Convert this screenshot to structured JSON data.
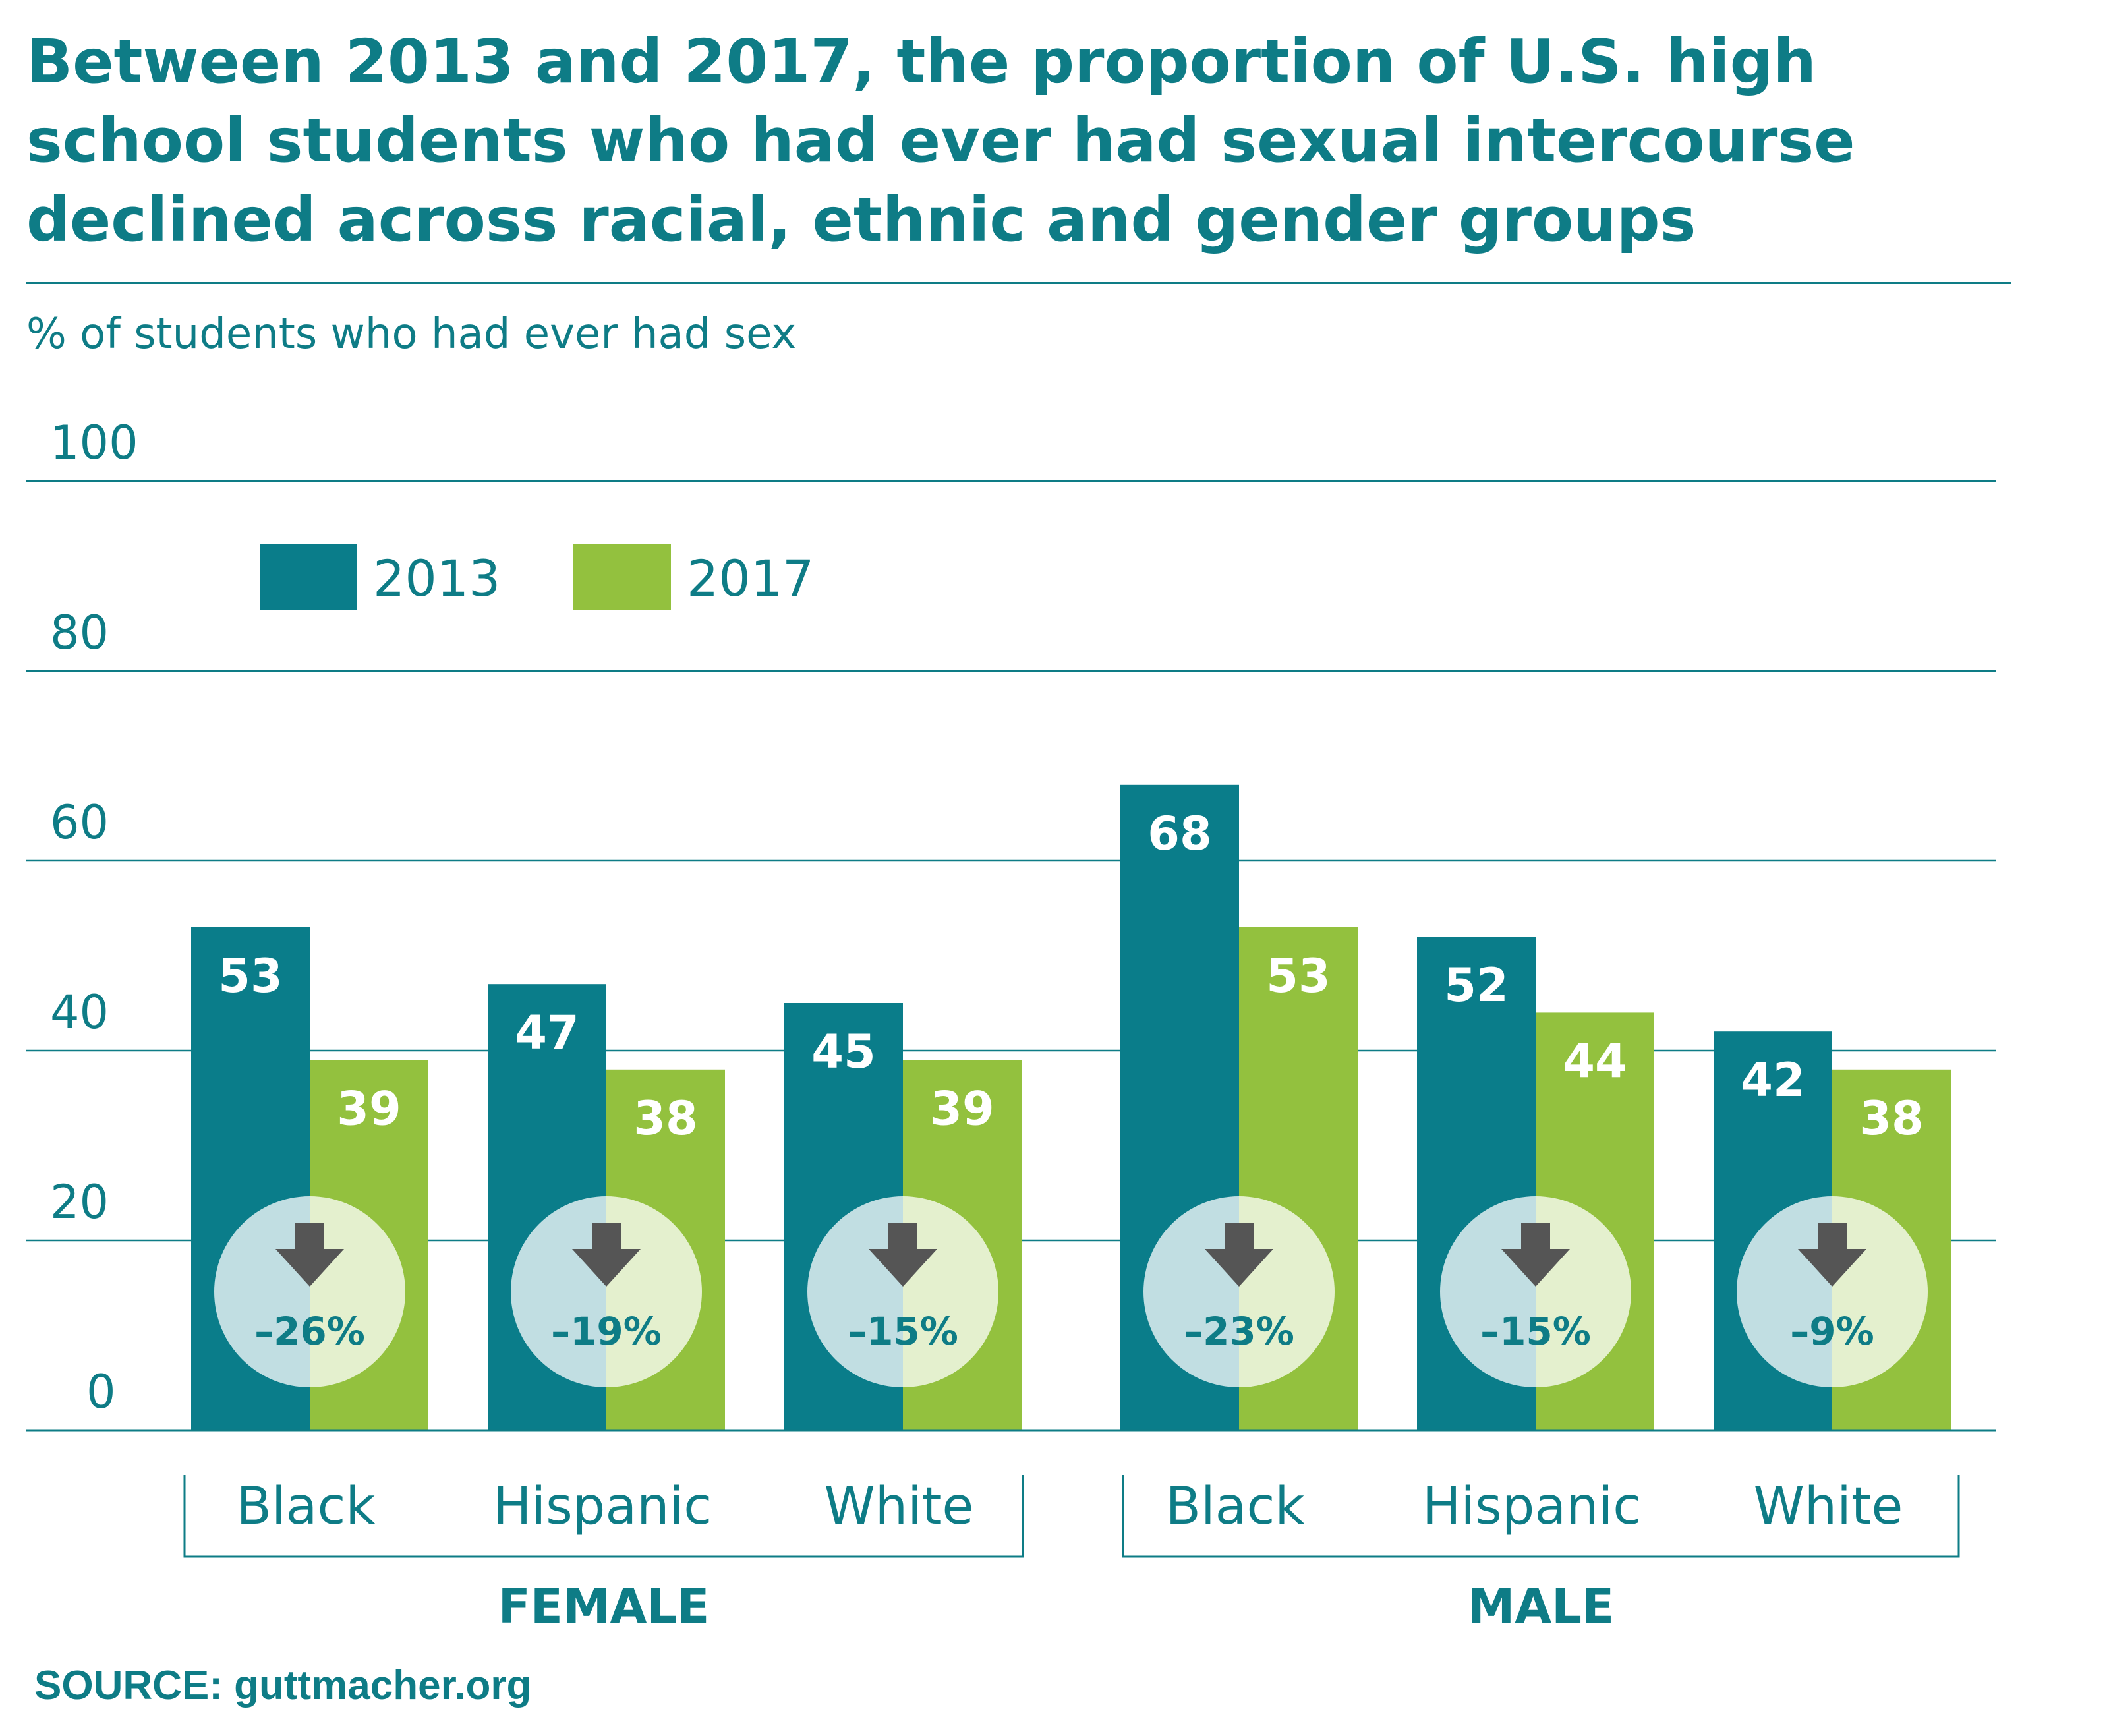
{
  "chart_data": {
    "type": "bar",
    "title": "Between 2013 and 2017, the proportion of U.S. high school students who had ever had sexual intercourse declined across racial, ethnic and gender groups",
    "ylabel": "% of students who had ever had sex",
    "ylim": [
      0,
      100
    ],
    "yticks": [
      "0",
      "20",
      "40",
      "60",
      "80",
      "100"
    ],
    "grid": true,
    "legend_position": "top-left",
    "groups": [
      {
        "name": "FEMALE",
        "categories": [
          "Black",
          "Hispanic",
          "White"
        ]
      },
      {
        "name": "MALE",
        "categories": [
          "Black",
          "Hispanic",
          "White"
        ]
      }
    ],
    "series": [
      {
        "name": "2013",
        "color": "#0a7d8a",
        "values": [
          53,
          47,
          45,
          68,
          52,
          42
        ]
      },
      {
        "name": "2017",
        "color": "#93c13e",
        "values": [
          39,
          38,
          39,
          53,
          44,
          38
        ]
      }
    ],
    "changes": [
      "–26%",
      "–19%",
      "–15%",
      "–23%",
      "–15%",
      "–9%"
    ],
    "change_icon": "arrow-down-icon"
  },
  "source": "SOURCE: guttmacher.org"
}
